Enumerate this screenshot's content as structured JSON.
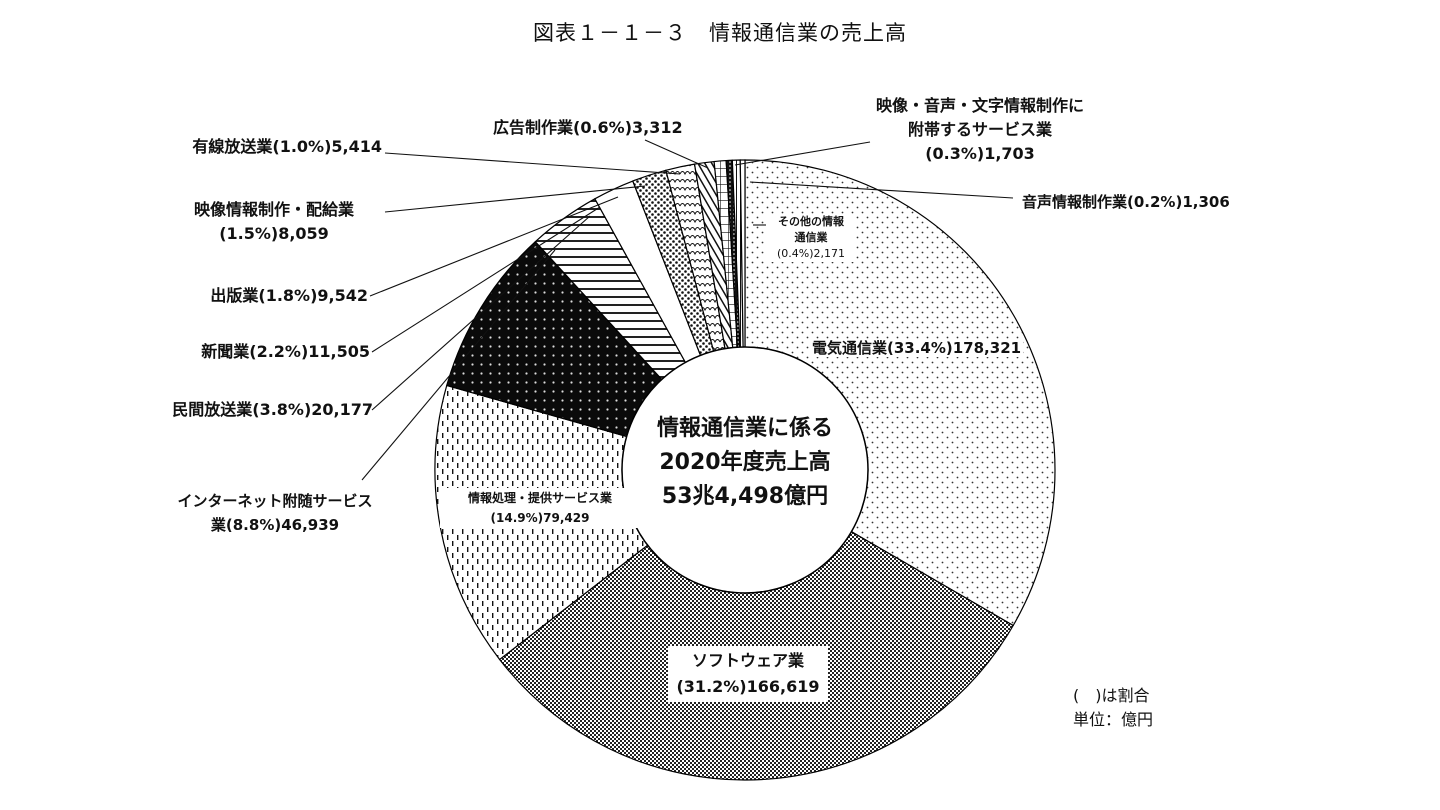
{
  "title": "図表１－１－３　情報通信業の売上高",
  "center": {
    "line1": "情報通信業に係る",
    "line2": "2020年度売上高",
    "line3": "53兆4,498億円"
  },
  "notes": {
    "ratio": "(　)は割合",
    "unit": "単位：億円"
  },
  "labels": {
    "denki": "電気通信業(33.4%)178,321",
    "software_1": "ソフトウェア業",
    "software_2": "(31.2%)166,619",
    "joho_1": "情報処理・提供サービス業",
    "joho_2": "(14.9%)79,429",
    "internet_1": "インターネット附随サービス",
    "internet_2": "業(8.8%)46,939",
    "minkan": "民間放送業(3.8%)20,177",
    "shinbun": "新聞業(2.2%)11,505",
    "shuppan": "出版業(1.8%)9,542",
    "eizo_1": "映像情報制作・配給業",
    "eizo_2": "(1.5%)8,059",
    "yusen": "有線放送業(1.0%)5,414",
    "kokoku": "広告制作業(0.6%)3,312",
    "futai_1": "映像・音声・文字情報制作に",
    "futai_2": "附帯するサービス業",
    "futai_3": "(0.3%)1,703",
    "onsei": "音声情報制作業(0.2%)1,306",
    "sonota_1": "その他の情報",
    "sonota_2": "通信業",
    "sonota_3": "(0.4%)2,171"
  },
  "chart_data": {
    "type": "pie",
    "subtype": "donut",
    "title": "図表１－１－３　情報通信業の売上高",
    "center_label": "情報通信業に係る 2020年度売上高 53兆4,498億円",
    "total": 534498,
    "unit": "億円",
    "start_angle_deg": 0,
    "direction": "clockwise",
    "legend": "none (leader-line labels)",
    "categories": [
      "電気通信業",
      "ソフトウェア業",
      "情報処理・提供サービス業",
      "インターネット附随サービス業",
      "民間放送業",
      "新聞業",
      "出版業",
      "映像情報制作・配給業",
      "有線放送業",
      "広告制作業",
      "映像・音声・文字情報制作に附帯するサービス業",
      "その他の情報通信業",
      "音声情報制作業"
    ],
    "values": [
      178321,
      166619,
      79429,
      46939,
      20177,
      11505,
      9542,
      8059,
      5414,
      3312,
      1703,
      2171,
      1306
    ],
    "percentages": [
      33.4,
      31.2,
      14.9,
      8.8,
      3.8,
      2.2,
      1.8,
      1.5,
      1.0,
      0.6,
      0.3,
      0.4,
      0.2
    ],
    "patterns": [
      "sparse-dots",
      "checker",
      "dashes",
      "black-with-white-dots",
      "horizontal-lines",
      "white",
      "dense-dots",
      "scales",
      "diagonal-lines",
      "grid",
      "black-dots",
      "vertical-lines",
      "white"
    ]
  }
}
